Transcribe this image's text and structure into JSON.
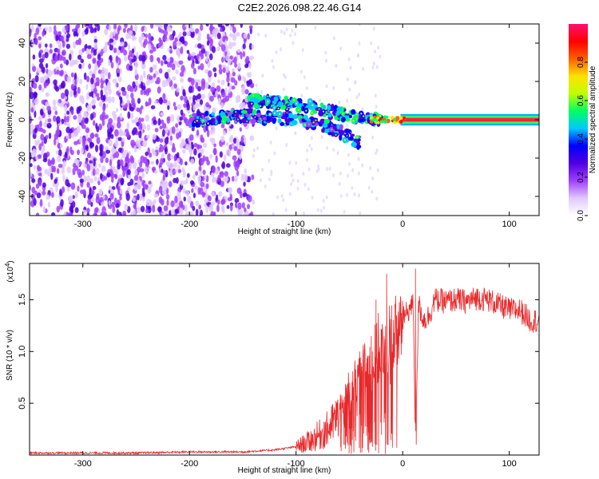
{
  "title": "C2E2.2026.098.22.46.G14",
  "colors": {
    "line": "#e8282a",
    "axis": "#000000",
    "background": "#ffffff",
    "spectrogram_low": "#e9d8ff",
    "spectrogram_mid": "#7a1fe0",
    "spectrogram_high": "#1a2ee0"
  },
  "chart_data": [
    {
      "type": "heatmap",
      "title": "",
      "xlabel": "Height of straight line (km)",
      "ylabel": "Frequency (Hz)",
      "xlim": [
        -350,
        128
      ],
      "ylim": [
        -50,
        50
      ],
      "x_ticks": [
        -300,
        -200,
        -100,
        0,
        100
      ],
      "y_ticks": [
        -40,
        -20,
        0,
        20,
        40
      ],
      "colorbar": {
        "label": "Normalized spectral amplitude",
        "range": [
          0.0,
          1.0
        ],
        "ticks": [
          0.0,
          0.2,
          0.4,
          0.6,
          0.8
        ],
        "tick_labels": [
          "0.0",
          "0.2",
          "0.4",
          "0.6",
          "0.8"
        ],
        "colormap": [
          "#ffffff",
          "#e0c8ff",
          "#a040ff",
          "#5000e0",
          "#0000ff",
          "#00c8ff",
          "#00ff60",
          "#c0ff00",
          "#ffe000",
          "#ff6000",
          "#ff0000",
          "#ff1070"
        ]
      },
      "features": [
        {
          "name": "noise",
          "x_range": [
            -350,
            -140
          ],
          "y_range": [
            -50,
            50
          ],
          "amplitude": 0.15
        },
        {
          "name": "upper-branch",
          "x": [
            -145,
            -120,
            -100,
            -80,
            -60,
            -40,
            -20
          ],
          "y": [
            10,
            9,
            8,
            6,
            3,
            1,
            0
          ],
          "amplitude": 0.45
        },
        {
          "name": "lower-branch",
          "x": [
            -200,
            -150,
            -120,
            -100,
            -80,
            -60,
            -50,
            -40
          ],
          "y": [
            0,
            2,
            1,
            0,
            -2,
            -6,
            -9,
            -12
          ],
          "amplitude": 0.4
        },
        {
          "name": "carrier",
          "x": [
            0,
            128
          ],
          "y": [
            0,
            0
          ],
          "amplitude": 1.0
        }
      ]
    },
    {
      "type": "line",
      "title": "",
      "xlabel": "Height of straight line (km)",
      "ylabel": "SNR (10 * v/v)",
      "y_multiplier": "(x10",
      "y_multiplier_exp": "4",
      "y_multiplier_close": ")",
      "xlim": [
        -350,
        128
      ],
      "ylim": [
        0,
        1.85
      ],
      "x_ticks": [
        -300,
        -200,
        -100,
        0,
        100
      ],
      "y_ticks": [
        0.5,
        1.0,
        1.5
      ],
      "y_tick_labels": [
        "0.5",
        "1.0",
        "1.5"
      ],
      "series": [
        {
          "x": [
            -350,
            -300,
            -250,
            -200,
            -150,
            -120,
            -100,
            -90,
            -80,
            -70,
            -60,
            -50,
            -45,
            -40,
            -35,
            -30,
            -25,
            -20,
            -18,
            -15,
            -12,
            -10,
            -5,
            0,
            5,
            10,
            12,
            15,
            20,
            25,
            30,
            40,
            50,
            60,
            70,
            80,
            90,
            100,
            110,
            120,
            128
          ],
          "y": [
            0.02,
            0.02,
            0.02,
            0.03,
            0.03,
            0.05,
            0.08,
            0.12,
            0.18,
            0.25,
            0.38,
            0.55,
            0.65,
            0.7,
            0.78,
            0.85,
            0.95,
            1.05,
            0.9,
            0.9,
            1.1,
            1.1,
            1.2,
            1.3,
            1.4,
            1.45,
            0.15,
            1.45,
            1.3,
            1.35,
            1.5,
            1.48,
            1.5,
            1.48,
            1.52,
            1.5,
            1.45,
            1.4,
            1.4,
            1.3,
            1.3
          ]
        }
      ],
      "spikes": [
        {
          "x": -25,
          "y": 1.5
        },
        {
          "x": -15,
          "y": 1.75
        },
        {
          "x": 12,
          "y": 1.8
        }
      ]
    }
  ]
}
